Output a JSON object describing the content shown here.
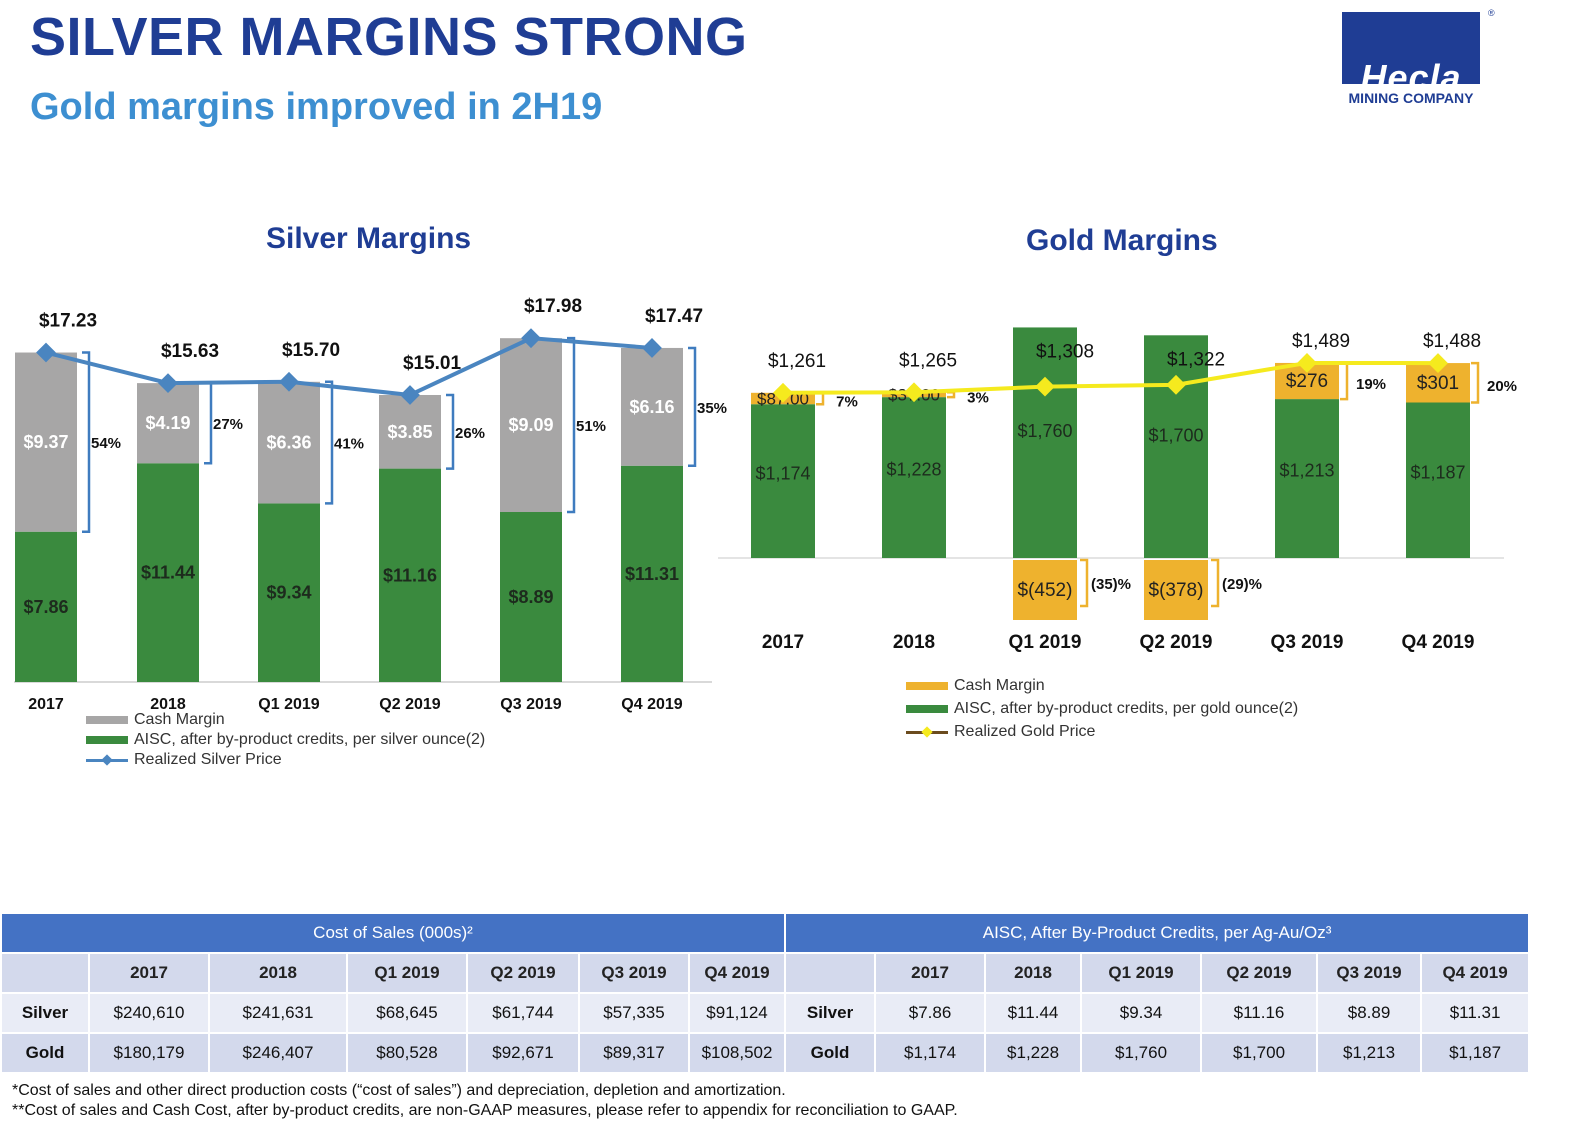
{
  "header": {
    "title": "SILVER MARGINS STRONG",
    "subtitle": "Gold margins improved in 2H19"
  },
  "logo": {
    "word": "Hecla",
    "registered": "®",
    "sub": "MINING COMPANY"
  },
  "colors": {
    "cash_margin_silver": "#a7a6a6",
    "aisc": "#3a8a3e",
    "silver_price": "#4a85c0",
    "cash_margin_gold": "#eeb22e",
    "gold_price": "#f5ea1e",
    "bracket": "#3f7cbf",
    "header_blue": "#4472c4"
  },
  "chart_data": [
    {
      "type": "bar",
      "title": "Silver Margins",
      "categories": [
        "2017",
        "2018",
        "Q1 2019",
        "Q2 2019",
        "Q3 2019",
        "Q4 2019"
      ],
      "series": [
        {
          "name": "Cash Margin",
          "values": [
            9.37,
            4.19,
            6.36,
            3.85,
            9.09,
            6.16
          ],
          "labels": [
            "$9.37",
            "$4.19",
            "$6.36",
            "$3.85",
            "$9.09",
            "$6.16"
          ]
        },
        {
          "name": "AISC, after by-product credits, per silver ounce(2)",
          "values": [
            7.86,
            11.44,
            9.34,
            11.16,
            8.89,
            11.31
          ],
          "labels": [
            "$7.86",
            "$11.44",
            "$9.34",
            "$11.16",
            "$8.89",
            "$11.31"
          ]
        },
        {
          "name": "Realized Silver Price",
          "type": "line",
          "values": [
            17.23,
            15.63,
            15.7,
            15.01,
            17.98,
            17.47
          ],
          "labels": [
            "$17.23",
            "$15.63",
            "$15.70",
            "$15.01",
            "$17.98",
            "$17.47"
          ]
        }
      ],
      "margin_pct": [
        "54%",
        "27%",
        "41%",
        "26%",
        "51%",
        "35%"
      ],
      "ylim": [
        0,
        20
      ],
      "legend": "bottom-left"
    },
    {
      "type": "bar",
      "title": "Gold Margins",
      "categories": [
        "2017",
        "2018",
        "Q1 2019",
        "Q2 2019",
        "Q3 2019",
        "Q4 2019"
      ],
      "series": [
        {
          "name": "Cash Margin",
          "values": [
            87,
            37,
            -452,
            -378,
            276,
            301
          ],
          "labels": [
            "$87.00",
            "$37.00",
            "$(452)",
            "$(378)",
            "$276",
            "$301"
          ]
        },
        {
          "name": "AISC, after by-product credits, per gold ounce(2)",
          "values": [
            1174,
            1228,
            1760,
            1700,
            1213,
            1187
          ],
          "labels": [
            "$1,174",
            "$1,228",
            "$1,760",
            "$1,700",
            "$1,213",
            "$1,187"
          ]
        },
        {
          "name": "Realized Gold Price",
          "type": "line",
          "values": [
            1261,
            1265,
            1308,
            1322,
            1489,
            1488
          ],
          "labels": [
            "$1,261",
            "$1,265",
            "$1,308",
            "$1,322",
            "$1,489",
            "$1,488"
          ]
        }
      ],
      "margin_pct": [
        "7%",
        "3%",
        "(35)%",
        "(29)%",
        "19%",
        "20%"
      ],
      "legend": "bottom-left"
    }
  ],
  "table": {
    "left_header": "Cost of Sales (000s)²",
    "right_header": "AISC, After By-Product Credits, per Ag-Au/Oz³",
    "columns": [
      "2017",
      "2018",
      "Q1 2019",
      "Q2 2019",
      "Q3 2019",
      "Q4 2019"
    ],
    "rows": [
      {
        "label": "Silver",
        "cost": [
          "$240,610",
          "$241,631",
          "$68,645",
          "$61,744",
          "$57,335",
          "$91,124"
        ],
        "aisc": [
          "$7.86",
          "$11.44",
          "$9.34",
          "$11.16",
          "$8.89",
          "$11.31"
        ]
      },
      {
        "label": "Gold",
        "cost": [
          "$180,179",
          "$246,407",
          "$80,528",
          "$92,671",
          "$89,317",
          "$108,502"
        ],
        "aisc": [
          "$1,174",
          "$1,228",
          "$1,760",
          "$1,700",
          "$1,213",
          "$1,187"
        ]
      }
    ]
  },
  "footnotes": [
    "*Cost of sales and other direct production costs (“cost of sales”) and depreciation, depletion and amortization.",
    "**Cost of sales and Cash Cost, after by-product credits, are non-GAAP measures, please refer to appendix for reconciliation to GAAP."
  ]
}
